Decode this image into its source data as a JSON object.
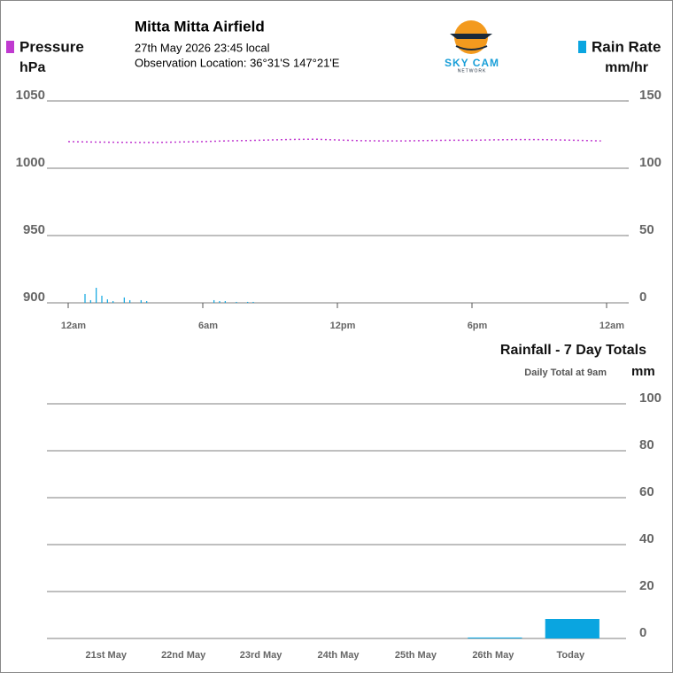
{
  "header": {
    "title": "Mitta Mitta Airfield",
    "datetime": "27th May 2026  23:45 local",
    "location": "Observation Location: 36°31'S 147°21'E",
    "logo_text": "SKY CAM",
    "logo_subtext": "NETWORK"
  },
  "chart_data": [
    {
      "type": "line",
      "series": [
        {
          "name": "Pressure",
          "color": "#c03ad0",
          "axis": "y",
          "type": "line",
          "x": [
            0,
            1,
            2,
            3,
            4,
            5,
            6,
            7,
            8,
            9,
            10,
            11,
            12,
            13,
            14,
            15,
            16,
            17,
            18,
            19,
            20,
            21,
            22,
            23,
            23.75
          ],
          "values": [
            1019.8,
            1019.5,
            1019.3,
            1019.2,
            1019.2,
            1019.5,
            1019.8,
            1020.3,
            1020.6,
            1021.0,
            1021.4,
            1021.6,
            1021.0,
            1020.5,
            1020.3,
            1020.3,
            1020.6,
            1020.8,
            1020.8,
            1021.1,
            1021.3,
            1021.3,
            1021.0,
            1020.6,
            1020.3
          ]
        },
        {
          "name": "Rain Rate",
          "color": "#0aa5e0",
          "axis": "y2",
          "type": "bar",
          "x": [
            0.75,
            1,
            1.25,
            1.5,
            1.75,
            2,
            2.5,
            2.75,
            3.25,
            3.5,
            6.5,
            6.75,
            7,
            7.5,
            8,
            8.25
          ],
          "values": [
            6.6,
            2,
            11.2,
            5.3,
            2.6,
            1.3,
            4,
            2,
            2,
            1.3,
            2,
            1.3,
            1.3,
            0.7,
            0.7,
            0.7
          ]
        }
      ],
      "y_label": "hPa",
      "y2_label": "mm/hr",
      "xlim": [
        0,
        24
      ],
      "xticks": [
        {
          "value": 0,
          "label": "12am"
        },
        {
          "value": 6,
          "label": "6am"
        },
        {
          "value": 12,
          "label": "12pm"
        },
        {
          "value": 18,
          "label": "6pm"
        },
        {
          "value": 24,
          "label": "12am"
        }
      ],
      "ylim": [
        900,
        1050
      ],
      "yticks": [
        900,
        950,
        1000,
        1050
      ],
      "y2lim": [
        0,
        150
      ],
      "y2ticks": [
        0,
        50,
        100,
        150
      ],
      "grid": true
    },
    {
      "type": "bar",
      "title": "Rainfall - 7 Day Totals",
      "subtitle": "Daily Total at 9am",
      "y_label": "mm",
      "categories": [
        "21st May",
        "22nd May",
        "23rd May",
        "24th May",
        "25th May",
        "26th May",
        "Today"
      ],
      "values": [
        0,
        0,
        0,
        0,
        0,
        0.4,
        8.3
      ],
      "color": "#0aa5e0",
      "ylim": [
        0,
        100
      ],
      "yticks": [
        0,
        20,
        40,
        60,
        80,
        100
      ],
      "grid": true
    }
  ]
}
